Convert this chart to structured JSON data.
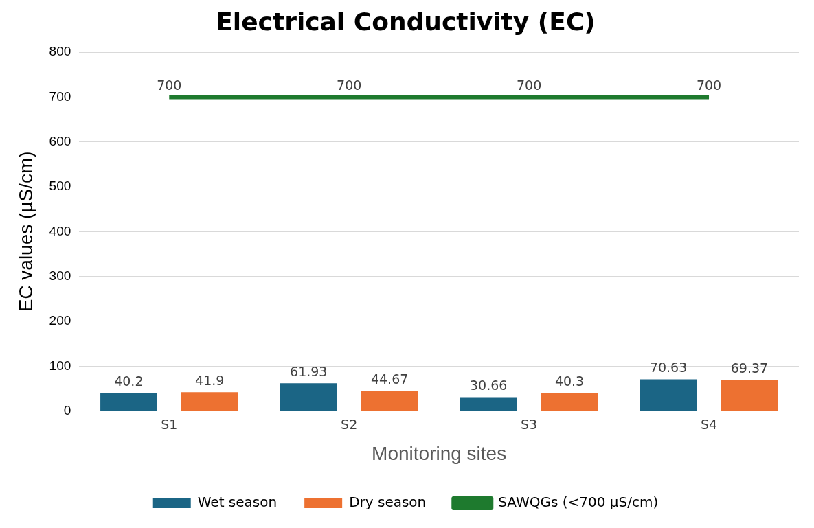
{
  "chart_data": {
    "type": "bar",
    "title": "Electrical Conductivity (EC)",
    "xlabel": "Monitoring sites",
    "ylabel": "EC values (µS/cm)",
    "categories": [
      "S1",
      "S2",
      "S3",
      "S4"
    ],
    "series": [
      {
        "name": "Wet season",
        "color": "#1b6585",
        "values": [
          40.2,
          61.93,
          30.66,
          70.63
        ]
      },
      {
        "name": "Dry season",
        "color": "#ed7131",
        "values": [
          41.9,
          44.67,
          40.3,
          69.37
        ]
      },
      {
        "name": "SAWQGs (<700 µS/cm)",
        "type": "line",
        "color": "#1e7a2e",
        "values": [
          700,
          700,
          700,
          700
        ]
      }
    ],
    "ylim": [
      0,
      800
    ],
    "yticks": [
      0,
      100,
      200,
      300,
      400,
      500,
      600,
      700,
      800
    ],
    "grid": "y",
    "legend": "bottom",
    "data_labels": true,
    "marker": "none"
  }
}
